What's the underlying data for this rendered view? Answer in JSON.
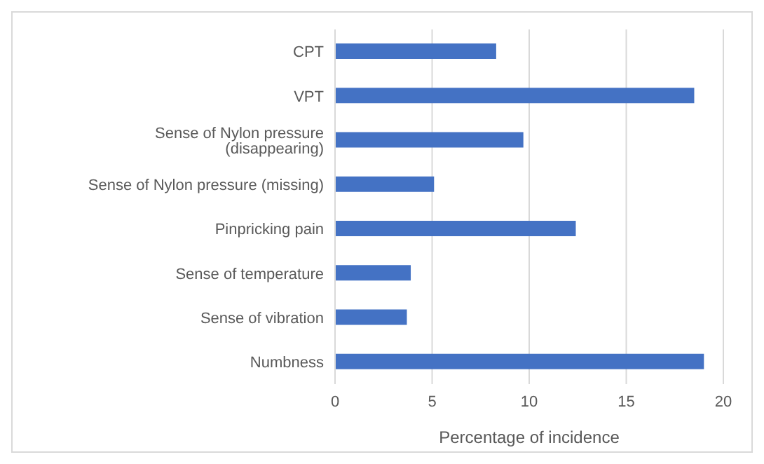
{
  "chart_data": {
    "type": "bar",
    "orientation": "horizontal",
    "xlabel": "Percentage of incidence",
    "categories": [
      "CPT",
      "VPT",
      "Sense of Nylon pressure (disappearing)",
      "Sense of Nylon pressure (missing)",
      "Pinpricking pain",
      "Sense of temperature",
      "Sense of vibration",
      "Numbness"
    ],
    "values": [
      8.3,
      18.5,
      9.7,
      5.1,
      12.4,
      3.9,
      3.7,
      19.0
    ],
    "color": "#4472c4",
    "xlim": [
      0,
      20
    ],
    "xticks": [
      0,
      5,
      10,
      15,
      20
    ],
    "grid": "x",
    "legend": false
  }
}
